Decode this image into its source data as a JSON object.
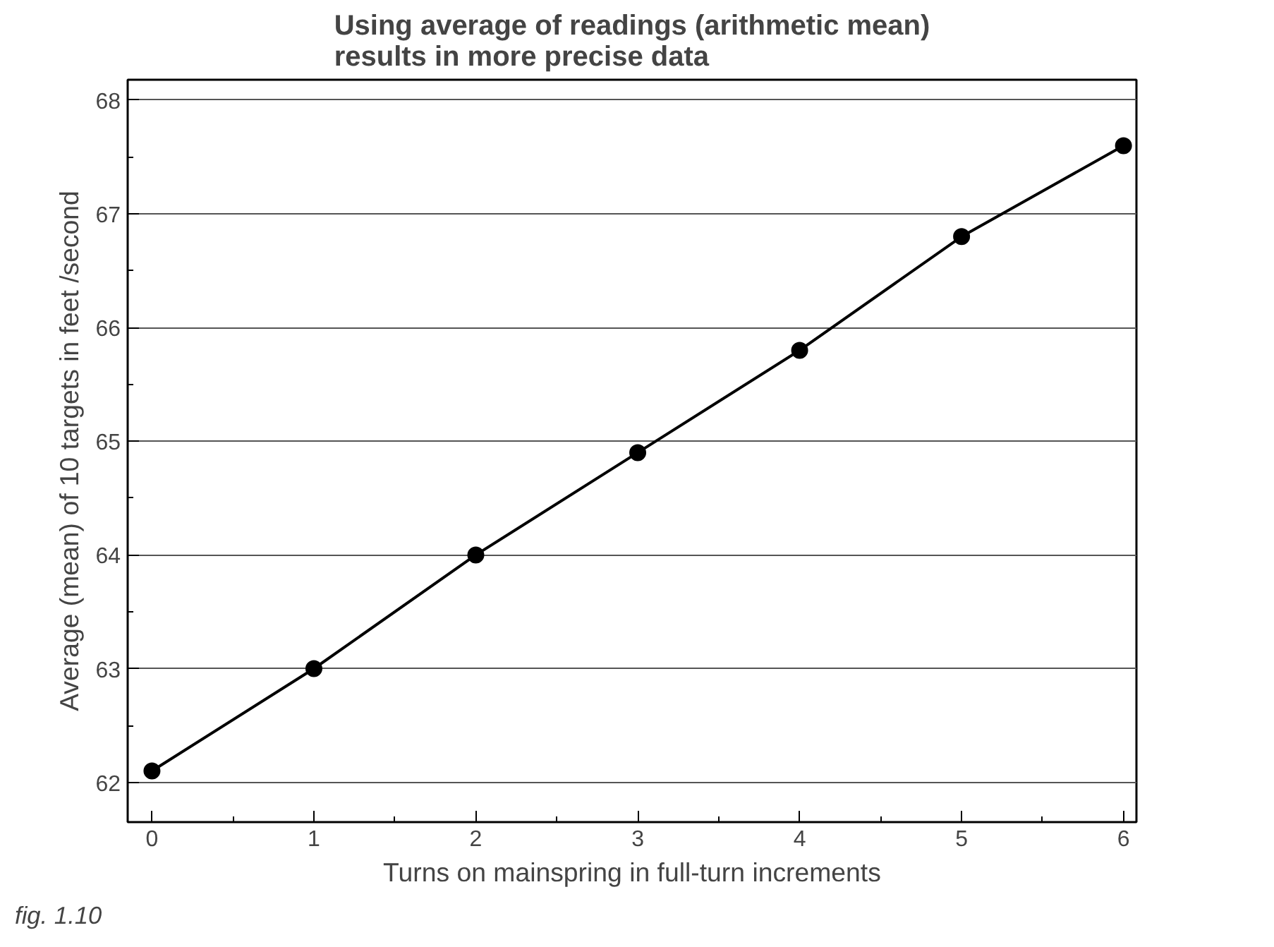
{
  "chart_data": {
    "type": "line",
    "title": "Using average of readings (arithmetic mean)\nresults in more precise data",
    "xlabel": "Turns on mainspring in full-turn increments",
    "ylabel": "Average (mean) of 10 targets in feet /second",
    "x": [
      0,
      1,
      2,
      3,
      4,
      5,
      6
    ],
    "series": [
      {
        "color": "#000000",
        "values": [
          62.1,
          63.0,
          64.0,
          64.9,
          65.8,
          66.8,
          67.6
        ]
      }
    ],
    "xlim": [
      -0.15,
      6.08
    ],
    "ylim": [
      61.65,
      68.18
    ],
    "xticks": [
      0,
      1,
      2,
      3,
      4,
      5,
      6
    ],
    "yticks": [
      62,
      63,
      64,
      65,
      66,
      67,
      68
    ],
    "grid": "y",
    "marker": "circle",
    "line_style": "solid",
    "annotations": [
      "fig. 1.10"
    ]
  }
}
